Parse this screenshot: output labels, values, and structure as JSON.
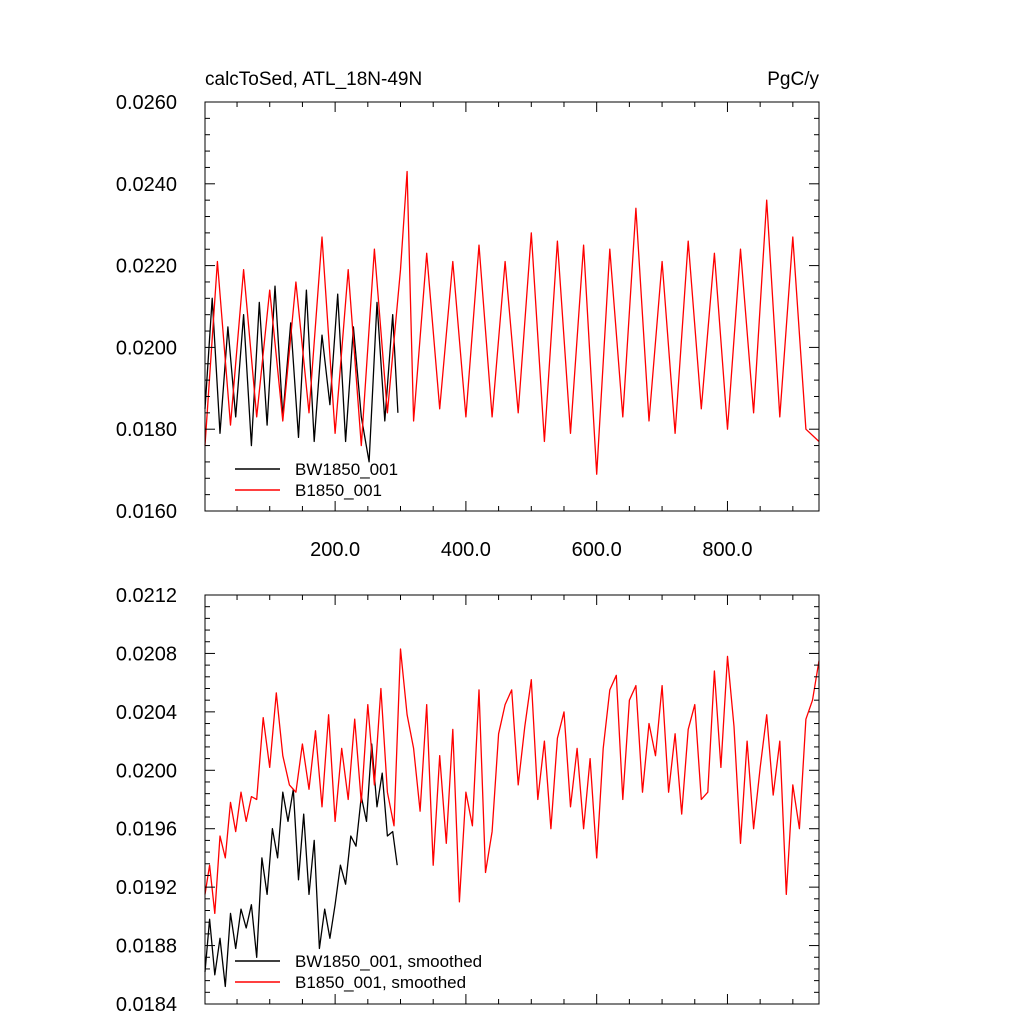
{
  "chart_data": [
    {
      "type": "line",
      "title": "calcToSed, ATL_18N-49N",
      "units": "PgC/y",
      "xlim": [
        1,
        940
      ],
      "ylim": [
        0.016,
        0.026
      ],
      "x_ticks": [
        200,
        400,
        600,
        800
      ],
      "x_tick_labels": [
        "200.0",
        "400.0",
        "600.0",
        "800.0"
      ],
      "y_ticks": [
        0.016,
        0.018,
        0.02,
        0.022,
        0.024,
        0.026
      ],
      "y_tick_labels": [
        "0.0160",
        "0.0180",
        "0.0200",
        "0.0220",
        "0.0240",
        "0.0260"
      ],
      "grid": false,
      "legend_position": "bottom-left",
      "series": [
        {
          "name": "BW1850_001",
          "color": "#000000",
          "x": [
            1,
            12,
            24,
            36,
            48,
            60,
            72,
            84,
            96,
            108,
            120,
            132,
            144,
            156,
            168,
            180,
            192,
            204,
            216,
            228,
            240,
            252,
            264,
            276,
            288,
            296
          ],
          "values": [
            0.0185,
            0.0212,
            0.0179,
            0.0205,
            0.0183,
            0.0208,
            0.0176,
            0.0211,
            0.0181,
            0.0215,
            0.0183,
            0.0206,
            0.0178,
            0.0214,
            0.0177,
            0.0203,
            0.0186,
            0.0213,
            0.0177,
            0.0205,
            0.0183,
            0.0172,
            0.0211,
            0.0182,
            0.0208,
            0.0184
          ]
        },
        {
          "name": "B1850_001",
          "color": "#ff0000",
          "x": [
            1,
            20,
            40,
            60,
            80,
            100,
            120,
            140,
            160,
            180,
            200,
            220,
            240,
            260,
            280,
            300,
            310,
            320,
            340,
            360,
            380,
            400,
            420,
            440,
            460,
            480,
            500,
            520,
            540,
            560,
            580,
            600,
            620,
            640,
            660,
            680,
            700,
            720,
            740,
            760,
            780,
            800,
            820,
            840,
            860,
            880,
            900,
            920,
            940
          ],
          "values": [
            0.0176,
            0.0221,
            0.0181,
            0.0219,
            0.0183,
            0.0214,
            0.0182,
            0.0216,
            0.0184,
            0.0227,
            0.0179,
            0.0219,
            0.0176,
            0.0224,
            0.0184,
            0.0219,
            0.0243,
            0.0182,
            0.0223,
            0.0185,
            0.0221,
            0.0183,
            0.0225,
            0.0183,
            0.0221,
            0.0184,
            0.0228,
            0.0177,
            0.0226,
            0.0179,
            0.0225,
            0.0169,
            0.0224,
            0.0183,
            0.0234,
            0.0182,
            0.0221,
            0.0179,
            0.0226,
            0.0185,
            0.0223,
            0.018,
            0.0224,
            0.0184,
            0.0236,
            0.0183,
            0.0227,
            0.018,
            0.0177
          ]
        }
      ]
    },
    {
      "type": "line",
      "xlim": [
        1,
        940
      ],
      "ylim": [
        0.0184,
        0.0212
      ],
      "x_ticks": [
        200,
        400,
        600,
        800
      ],
      "y_ticks": [
        0.0184,
        0.0188,
        0.0192,
        0.0196,
        0.02,
        0.0204,
        0.0208,
        0.0212
      ],
      "y_tick_labels": [
        "0.0184",
        "0.0188",
        "0.0192",
        "0.0196",
        "0.0200",
        "0.0204",
        "0.0208",
        "0.0212"
      ],
      "grid": false,
      "legend_position": "bottom-left",
      "series": [
        {
          "name": "BW1850_001, smoothed",
          "color": "#000000",
          "x": [
            1,
            8,
            16,
            24,
            32,
            40,
            48,
            56,
            64,
            72,
            80,
            88,
            96,
            104,
            112,
            120,
            128,
            136,
            144,
            152,
            160,
            168,
            176,
            184,
            192,
            200,
            208,
            216,
            224,
            232,
            240,
            248,
            256,
            264,
            272,
            280,
            288,
            295
          ],
          "values": [
            0.01862,
            0.01898,
            0.0186,
            0.01885,
            0.01852,
            0.01902,
            0.01878,
            0.01905,
            0.01892,
            0.01908,
            0.01872,
            0.0194,
            0.01915,
            0.0196,
            0.0194,
            0.01985,
            0.01965,
            0.01987,
            0.01925,
            0.0197,
            0.01915,
            0.01952,
            0.01878,
            0.01905,
            0.01885,
            0.01908,
            0.01935,
            0.01922,
            0.01955,
            0.01948,
            0.01982,
            0.01965,
            0.02018,
            0.01975,
            0.01998,
            0.01955,
            0.01958,
            0.01935
          ]
        },
        {
          "name": "B1850_001, smoothed",
          "color": "#ff0000",
          "x": [
            1,
            8,
            16,
            24,
            32,
            40,
            48,
            56,
            64,
            72,
            80,
            90,
            100,
            110,
            120,
            130,
            140,
            150,
            160,
            170,
            180,
            190,
            200,
            210,
            220,
            230,
            240,
            250,
            260,
            270,
            280,
            290,
            300,
            310,
            320,
            330,
            340,
            350,
            360,
            370,
            380,
            390,
            400,
            410,
            420,
            430,
            440,
            450,
            460,
            470,
            480,
            490,
            500,
            510,
            520,
            530,
            540,
            550,
            560,
            570,
            580,
            590,
            600,
            610,
            620,
            630,
            640,
            650,
            660,
            670,
            680,
            690,
            700,
            710,
            720,
            730,
            740,
            750,
            760,
            770,
            780,
            790,
            800,
            810,
            820,
            830,
            840,
            850,
            860,
            870,
            880,
            890,
            900,
            910,
            920,
            930,
            940
          ],
          "values": [
            0.01915,
            0.01935,
            0.01902,
            0.01955,
            0.0194,
            0.01978,
            0.01958,
            0.01985,
            0.01965,
            0.01982,
            0.0198,
            0.02036,
            0.02002,
            0.02053,
            0.0201,
            0.0199,
            0.01985,
            0.02018,
            0.01987,
            0.02027,
            0.01975,
            0.02038,
            0.01965,
            0.02015,
            0.0198,
            0.02035,
            0.01978,
            0.02045,
            0.0199,
            0.02056,
            0.01985,
            0.01962,
            0.02083,
            0.02038,
            0.02015,
            0.01972,
            0.02045,
            0.01935,
            0.0201,
            0.0195,
            0.02028,
            0.0191,
            0.01985,
            0.01962,
            0.02055,
            0.0193,
            0.01958,
            0.02025,
            0.02045,
            0.02055,
            0.0199,
            0.0203,
            0.02062,
            0.0198,
            0.0202,
            0.0196,
            0.02022,
            0.0204,
            0.01975,
            0.02015,
            0.0196,
            0.02008,
            0.0194,
            0.02015,
            0.02055,
            0.02065,
            0.0198,
            0.02048,
            0.02058,
            0.01985,
            0.02032,
            0.0201,
            0.02058,
            0.01985,
            0.02025,
            0.0197,
            0.02028,
            0.02045,
            0.0198,
            0.01985,
            0.02068,
            0.02002,
            0.02078,
            0.0203,
            0.0195,
            0.0202,
            0.0196,
            0.02002,
            0.02038,
            0.01983,
            0.0202,
            0.01915,
            0.0199,
            0.0196,
            0.02035,
            0.02048,
            0.02075
          ]
        }
      ]
    }
  ]
}
